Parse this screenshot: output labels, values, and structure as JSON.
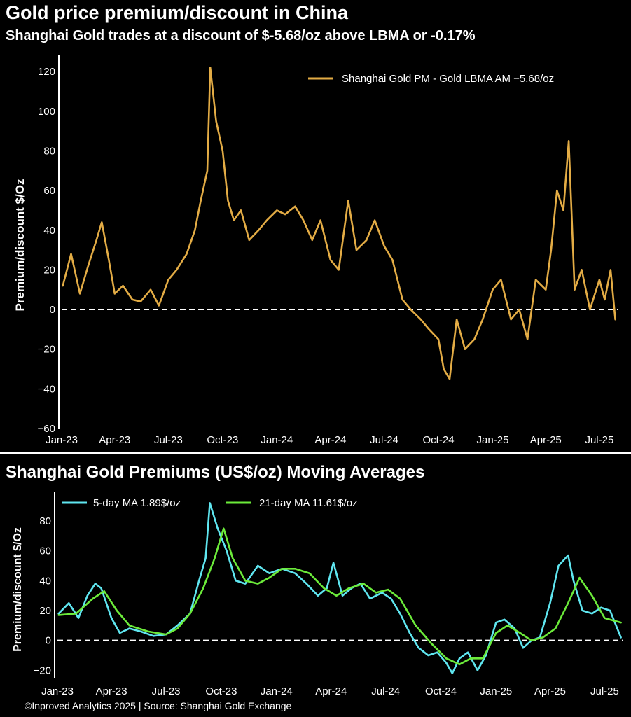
{
  "header": {
    "title": "Gold price premium/discount in China",
    "subtitle": "Shanghai Gold trades at a discount of $-5.68/oz above LBMA or -0.17%"
  },
  "lower_panel": {
    "title": "Shanghai Gold Premiums (US$/oz) Moving Averages"
  },
  "footer": {
    "text": "©Inproved Analytics 2025 | Source: Shanghai Gold Exchange"
  },
  "colors": {
    "background": "#000000",
    "gold": "#E3AC45",
    "ma5": "#5FE6F0",
    "ma21": "#6CEB3A",
    "axis": "#FFFFFF"
  },
  "chart_data": [
    {
      "type": "line",
      "ylabel": "Premium/discount $/Oz",
      "xlabel": "",
      "ylim": [
        -60,
        125
      ],
      "xlim": [
        "2023-01-01",
        "2025-08-01"
      ],
      "yticks": [
        "120",
        "100",
        "80",
        "60",
        "40",
        "20",
        "0",
        "−20",
        "−40",
        "−60"
      ],
      "xticks": [
        "Jan-23",
        "Apr-23",
        "Jul-23",
        "Oct-23",
        "Jan-24",
        "Apr-24",
        "Jul-24",
        "Oct-24",
        "Jan-25",
        "Apr-25",
        "Jul-25"
      ],
      "zero_line": "dashed",
      "legend": "top-right",
      "series": [
        {
          "name": "Shanghai Gold PM - Gold LBMA AM −5.68/oz",
          "color": "#E3AC45",
          "x": [
            "2023-01-03",
            "2023-01-17",
            "2023-02-01",
            "2023-02-15",
            "2023-03-01",
            "2023-03-10",
            "2023-03-22",
            "2023-04-01",
            "2023-04-15",
            "2023-05-01",
            "2023-05-15",
            "2023-06-01",
            "2023-06-15",
            "2023-07-01",
            "2023-07-15",
            "2023-08-01",
            "2023-08-15",
            "2023-08-25",
            "2023-09-05",
            "2023-09-10",
            "2023-09-20",
            "2023-10-01",
            "2023-10-10",
            "2023-10-20",
            "2023-11-01",
            "2023-11-15",
            "2023-12-01",
            "2023-12-15",
            "2024-01-01",
            "2024-01-15",
            "2024-02-01",
            "2024-02-15",
            "2024-03-01",
            "2024-03-15",
            "2024-04-01",
            "2024-04-15",
            "2024-05-01",
            "2024-05-15",
            "2024-06-01",
            "2024-06-15",
            "2024-07-01",
            "2024-07-15",
            "2024-08-01",
            "2024-08-15",
            "2024-09-01",
            "2024-09-15",
            "2024-10-01",
            "2024-10-10",
            "2024-10-20",
            "2024-11-01",
            "2024-11-15",
            "2024-12-01",
            "2024-12-15",
            "2025-01-01",
            "2025-01-15",
            "2025-02-01",
            "2025-02-15",
            "2025-03-01",
            "2025-03-15",
            "2025-04-01",
            "2025-04-10",
            "2025-04-20",
            "2025-05-01",
            "2025-05-10",
            "2025-05-20",
            "2025-06-01",
            "2025-06-15",
            "2025-07-01",
            "2025-07-10",
            "2025-07-20",
            "2025-07-28"
          ],
          "values": [
            12,
            28,
            8,
            22,
            35,
            44,
            25,
            8,
            12,
            5,
            4,
            10,
            2,
            15,
            20,
            28,
            40,
            55,
            70,
            122,
            95,
            80,
            55,
            45,
            50,
            35,
            40,
            45,
            50,
            48,
            52,
            45,
            35,
            45,
            25,
            20,
            55,
            30,
            35,
            45,
            32,
            25,
            5,
            0,
            -5,
            -10,
            -15,
            -30,
            -35,
            -5,
            -20,
            -15,
            -5,
            10,
            15,
            -5,
            0,
            -15,
            15,
            10,
            30,
            60,
            50,
            85,
            10,
            20,
            0,
            15,
            5,
            20,
            -5
          ]
        }
      ]
    },
    {
      "type": "line",
      "ylabel": "Premium/discount $/Oz",
      "xlabel": "",
      "ylim": [
        -25,
        95
      ],
      "xlim": [
        "2023-01-01",
        "2025-08-01"
      ],
      "yticks": [
        "80",
        "60",
        "40",
        "20",
        "0",
        "−20"
      ],
      "xticks": [
        "Jan-23",
        "Apr-23",
        "Jul-23",
        "Oct-23",
        "Jan-24",
        "Apr-24",
        "Jul-24",
        "Oct-24",
        "Jan-25",
        "Apr-25",
        "Jul-25"
      ],
      "zero_line": "dashed",
      "legend": "top-left",
      "series": [
        {
          "name": "5-day MA 1.89$/oz",
          "color": "#5FE6F0",
          "x": [
            "2023-01-03",
            "2023-01-20",
            "2023-02-05",
            "2023-02-20",
            "2023-03-05",
            "2023-03-15",
            "2023-04-01",
            "2023-04-15",
            "2023-05-01",
            "2023-05-20",
            "2023-06-10",
            "2023-07-01",
            "2023-07-20",
            "2023-08-10",
            "2023-08-25",
            "2023-09-05",
            "2023-09-12",
            "2023-09-25",
            "2023-10-10",
            "2023-10-25",
            "2023-11-10",
            "2023-12-01",
            "2023-12-20",
            "2024-01-10",
            "2024-02-01",
            "2024-02-20",
            "2024-03-10",
            "2024-03-25",
            "2024-04-05",
            "2024-04-20",
            "2024-05-05",
            "2024-05-20",
            "2024-06-05",
            "2024-06-25",
            "2024-07-10",
            "2024-07-25",
            "2024-08-10",
            "2024-08-25",
            "2024-09-10",
            "2024-09-25",
            "2024-10-10",
            "2024-10-20",
            "2024-11-01",
            "2024-11-15",
            "2024-12-01",
            "2024-12-15",
            "2025-01-01",
            "2025-01-15",
            "2025-02-01",
            "2025-02-15",
            "2025-03-01",
            "2025-03-15",
            "2025-04-01",
            "2025-04-15",
            "2025-05-01",
            "2025-05-10",
            "2025-05-25",
            "2025-06-10",
            "2025-06-25",
            "2025-07-10",
            "2025-07-28"
          ],
          "values": [
            18,
            25,
            15,
            30,
            38,
            35,
            15,
            5,
            8,
            6,
            3,
            4,
            10,
            18,
            40,
            55,
            92,
            75,
            60,
            40,
            38,
            50,
            45,
            48,
            45,
            38,
            30,
            35,
            52,
            30,
            35,
            38,
            28,
            32,
            28,
            18,
            5,
            -5,
            -10,
            -8,
            -15,
            -22,
            -12,
            -8,
            -20,
            -10,
            12,
            14,
            8,
            -5,
            0,
            2,
            25,
            50,
            57,
            40,
            20,
            18,
            22,
            20,
            2
          ]
        },
        {
          "name": "21-day MA 11.61$/oz",
          "color": "#6CEB3A",
          "x": [
            "2023-01-03",
            "2023-02-01",
            "2023-03-01",
            "2023-03-20",
            "2023-04-10",
            "2023-05-01",
            "2023-06-01",
            "2023-07-01",
            "2023-07-20",
            "2023-08-10",
            "2023-09-01",
            "2023-09-20",
            "2023-10-05",
            "2023-10-20",
            "2023-11-10",
            "2023-12-01",
            "2023-12-20",
            "2024-01-10",
            "2024-02-01",
            "2024-02-25",
            "2024-03-20",
            "2024-04-10",
            "2024-05-01",
            "2024-05-25",
            "2024-06-15",
            "2024-07-05",
            "2024-07-25",
            "2024-08-20",
            "2024-09-15",
            "2024-10-10",
            "2024-11-01",
            "2024-11-20",
            "2024-12-10",
            "2025-01-01",
            "2025-01-20",
            "2025-02-10",
            "2025-03-01",
            "2025-03-20",
            "2025-04-10",
            "2025-05-01",
            "2025-05-20",
            "2025-06-10",
            "2025-07-01",
            "2025-07-28"
          ],
          "values": [
            17,
            18,
            28,
            33,
            20,
            10,
            6,
            4,
            8,
            18,
            35,
            55,
            75,
            55,
            40,
            38,
            42,
            48,
            48,
            45,
            35,
            30,
            35,
            38,
            32,
            34,
            28,
            10,
            -2,
            -12,
            -16,
            -12,
            -12,
            5,
            10,
            5,
            0,
            2,
            8,
            25,
            42,
            30,
            15,
            12
          ]
        }
      ]
    }
  ]
}
